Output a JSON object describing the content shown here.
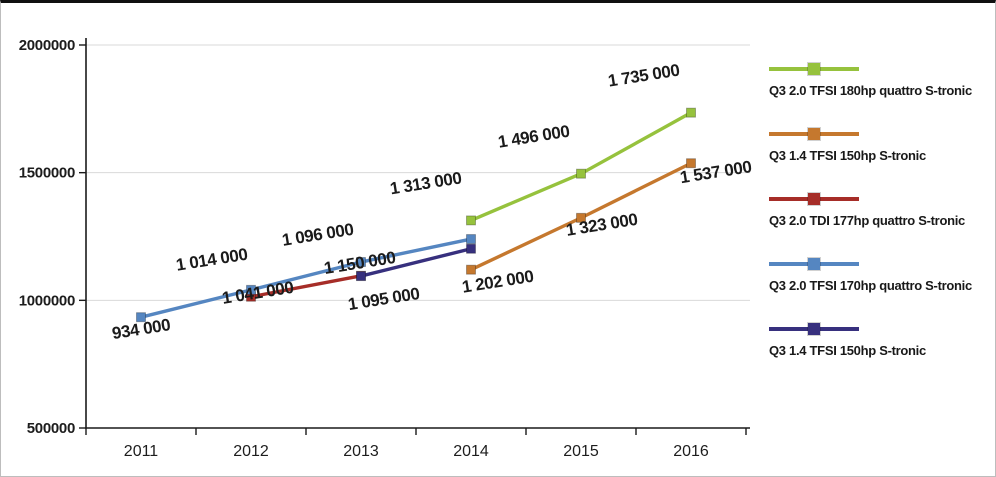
{
  "chart_data": {
    "type": "line",
    "title": "",
    "xlabel": "",
    "ylabel": "",
    "legend_position": "right",
    "grid": true,
    "categories": [
      "2011",
      "2012",
      "2013",
      "2014",
      "2015",
      "2016"
    ],
    "y_axis": {
      "min": 500000,
      "max": 2000000,
      "ticks": [
        {
          "value": 2000000,
          "label": "2000000"
        },
        {
          "value": 1500000,
          "label": "1500000"
        },
        {
          "value": 1000000,
          "label": "1000000"
        },
        {
          "value": 500000,
          "label": "500000"
        }
      ]
    },
    "series": [
      {
        "name": "Q3 2.0 TFSI 180hp quattro S-tronic",
        "color": "#96c23d",
        "points": [
          {
            "ci": 3,
            "value": 1313000,
            "label": "1 313 000",
            "label_dx": -80,
            "label_dy": -26
          },
          {
            "ci": 4,
            "value": 1496000,
            "label": "1 496 000",
            "label_dx": -82,
            "label_dy": -26
          },
          {
            "ci": 5,
            "value": 1735000,
            "label": "1 735 000",
            "label_dx": -82,
            "label_dy": -26
          }
        ]
      },
      {
        "name": "Q3 1.4 TFSI 150hp S-tronic",
        "color": "#c5782e",
        "points": [
          {
            "ci": 3,
            "value": 1120000,
            "label": null,
            "label_dx": 0,
            "label_dy": 0
          },
          {
            "ci": 4,
            "value": 1323000,
            "label": "1 323 000",
            "label_dx": -14,
            "label_dy": 18
          },
          {
            "ci": 5,
            "value": 1537000,
            "label": "1 537 000",
            "label_dx": -10,
            "label_dy": 20
          }
        ]
      },
      {
        "name": "Q3 2.0 TDI 177hp quattro S-tronic",
        "color": "#a62d28",
        "points": [
          {
            "ci": 1,
            "value": 1014000,
            "label": "1 014 000",
            "label_dx": -74,
            "label_dy": -26
          },
          {
            "ci": 2,
            "value": 1096000,
            "label": "1 096 000",
            "label_dx": -78,
            "label_dy": -30
          }
        ]
      },
      {
        "name": "Q3 2.0 TFSI 170hp quattro S-tronic",
        "color": "#5586c1",
        "points": [
          {
            "ci": 0,
            "value": 934000,
            "label": "934 000",
            "label_dx": -28,
            "label_dy": 22
          },
          {
            "ci": 1,
            "value": 1041000,
            "label": "1 041 000",
            "label_dx": -28,
            "label_dy": 14
          },
          {
            "ci": 2,
            "value": 1150000,
            "label": "1 150 000",
            "label_dx": -36,
            "label_dy": 12
          },
          {
            "ci": 3,
            "value": 1240000,
            "label": null,
            "label_dx": 0,
            "label_dy": 0
          }
        ]
      },
      {
        "name": "Q3 1.4 TFSI 150hp S-tronic",
        "color": "#37307e",
        "points": [
          {
            "ci": 2,
            "value": 1095000,
            "label": "1 095 000",
            "label_dx": -12,
            "label_dy": 34
          },
          {
            "ci": 3,
            "value": 1202000,
            "label": "1 202 000",
            "label_dx": -8,
            "label_dy": 44
          }
        ]
      }
    ]
  }
}
